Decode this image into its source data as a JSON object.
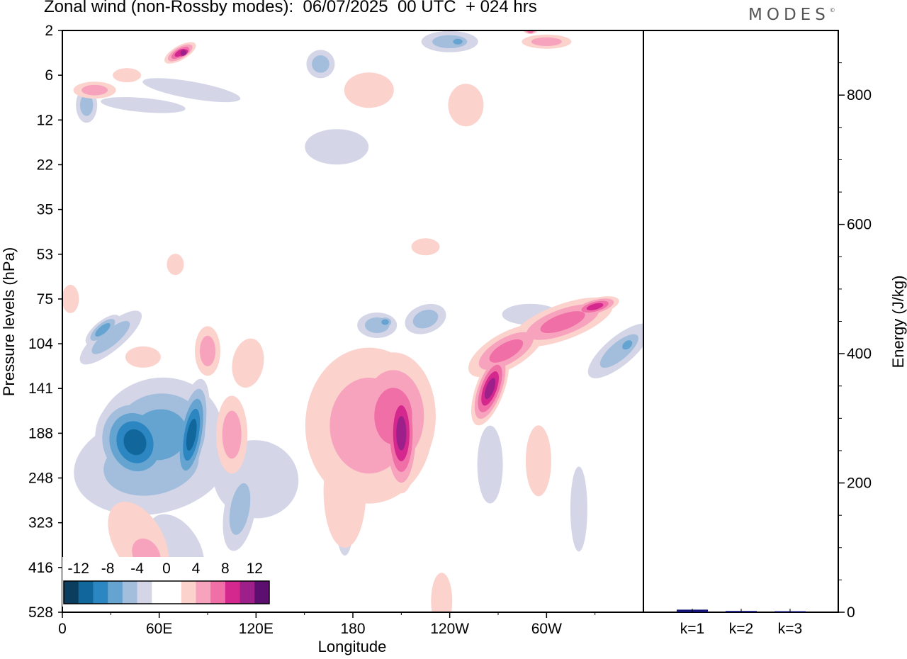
{
  "title": "Zonal wind (non-Rossby modes):  06/07/2025  00 UTC  + 024 hrs",
  "logo": "MODES",
  "chart_data": [
    {
      "type": "heatmap",
      "title": "Zonal wind (non-Rossby modes):  06/07/2025  00 UTC  + 024 hrs",
      "xlabel": "Longitude",
      "ylabel": "Pressure levels (hPa)",
      "x_ticks": [
        "0",
        "60E",
        "120E",
        "180",
        "120W",
        "60W"
      ],
      "x_tick_values": [
        0,
        60,
        120,
        180,
        240,
        300
      ],
      "xlim": [
        0,
        360
      ],
      "y_ticks": [
        "2",
        "6",
        "12",
        "22",
        "35",
        "53",
        "75",
        "104",
        "141",
        "188",
        "248",
        "323",
        "416",
        "528"
      ],
      "colorbar": {
        "labels": [
          "-12",
          "-8",
          "-4",
          "0",
          "4",
          "8",
          "12"
        ],
        "levels": [
          -14,
          -12,
          -10,
          -8,
          -6,
          -4,
          -2,
          0,
          2,
          4,
          6,
          8,
          10,
          12,
          14
        ],
        "colors": [
          "#0a3d5e",
          "#11679b",
          "#2b86c2",
          "#65a3d0",
          "#a3bedd",
          "#d4d6e8",
          "#ffffff",
          "#ffffff",
          "#fbd2cc",
          "#f8a3be",
          "#ef6fa6",
          "#d4288f",
          "#9c1f8a",
          "#5c0f6e"
        ]
      },
      "features": [
        {
          "lon": 40,
          "plev": 188,
          "value": -13
        },
        {
          "lon": 80,
          "plev": 188,
          "value": -12
        },
        {
          "lon": 25,
          "plev": 95,
          "value": -8
        },
        {
          "lon": 195,
          "plev": 92,
          "value": -8
        },
        {
          "lon": 345,
          "plev": 110,
          "value": -9
        },
        {
          "lon": 210,
          "plev": 188,
          "value": 12
        },
        {
          "lon": 265,
          "plev": 141,
          "value": 12
        },
        {
          "lon": 330,
          "plev": 80,
          "value": 9
        },
        {
          "lon": 73,
          "plev": 3,
          "value": 10
        },
        {
          "lon": 105,
          "plev": 188,
          "value": 5
        },
        {
          "lon": 52,
          "plev": 390,
          "value": 6
        }
      ]
    },
    {
      "type": "bar",
      "ylabel": "Energy (J/kg)",
      "categories": [
        "k=1",
        "k=2",
        "k=3"
      ],
      "values": [
        4,
        2,
        1
      ],
      "ylim": [
        0,
        900
      ],
      "y_ticks": [
        "0",
        "200",
        "400",
        "600",
        "800"
      ],
      "y_tick_values": [
        0,
        200,
        400,
        600,
        800
      ],
      "bar_color": "#141478"
    }
  ]
}
